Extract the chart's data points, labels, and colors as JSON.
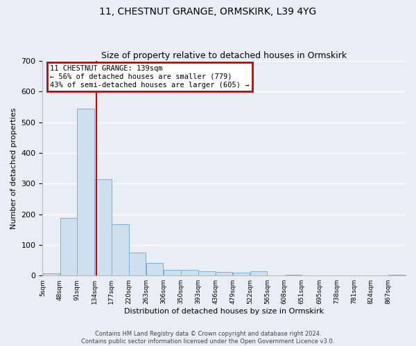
{
  "title": "11, CHESTNUT GRANGE, ORMSKIRK, L39 4YG",
  "subtitle": "Size of property relative to detached houses in Ormskirk",
  "bar_labels": [
    "5sqm",
    "48sqm",
    "91sqm",
    "134sqm",
    "177sqm",
    "220sqm",
    "263sqm",
    "306sqm",
    "350sqm",
    "393sqm",
    "436sqm",
    "479sqm",
    "522sqm",
    "565sqm",
    "608sqm",
    "651sqm",
    "695sqm",
    "738sqm",
    "781sqm",
    "824sqm",
    "867sqm"
  ],
  "bar_values": [
    8,
    188,
    545,
    315,
    167,
    75,
    40,
    18,
    18,
    15,
    12,
    10,
    13,
    0,
    3,
    0,
    0,
    0,
    0,
    0,
    2
  ],
  "bar_color": "#cce0f0",
  "bar_edge_color": "#7ab0d4",
  "ylim": [
    0,
    700
  ],
  "yticks": [
    0,
    100,
    200,
    300,
    400,
    500,
    600,
    700
  ],
  "ylabel": "Number of detached properties",
  "xlabel": "Distribution of detached houses by size in Ormskirk",
  "property_line_x": 139,
  "property_line_color": "#cc0000",
  "annotation_title": "11 CHESTNUT GRANGE: 139sqm",
  "annotation_line1": "← 56% of detached houses are smaller (779)",
  "annotation_line2": "43% of semi-detached houses are larger (605) →",
  "annotation_box_color": "#cc0000",
  "background_color": "#e8eef4",
  "plot_bg_color": "#e8eef4",
  "grid_color": "#ffffff",
  "footer_line1": "Contains HM Land Registry data © Crown copyright and database right 2024.",
  "footer_line2": "Contains public sector information licensed under the Open Government Licence v3.0.",
  "bin_edges": [
    5,
    48,
    91,
    134,
    177,
    220,
    263,
    306,
    350,
    393,
    436,
    479,
    522,
    565,
    608,
    651,
    695,
    738,
    781,
    824,
    867,
    910
  ],
  "title_fontsize": 10,
  "subtitle_fontsize": 9,
  "ylabel_fontsize": 8,
  "xlabel_fontsize": 8,
  "ytick_fontsize": 8,
  "xtick_fontsize": 6.5,
  "ann_fontsize": 7.5,
  "footer_fontsize": 6
}
